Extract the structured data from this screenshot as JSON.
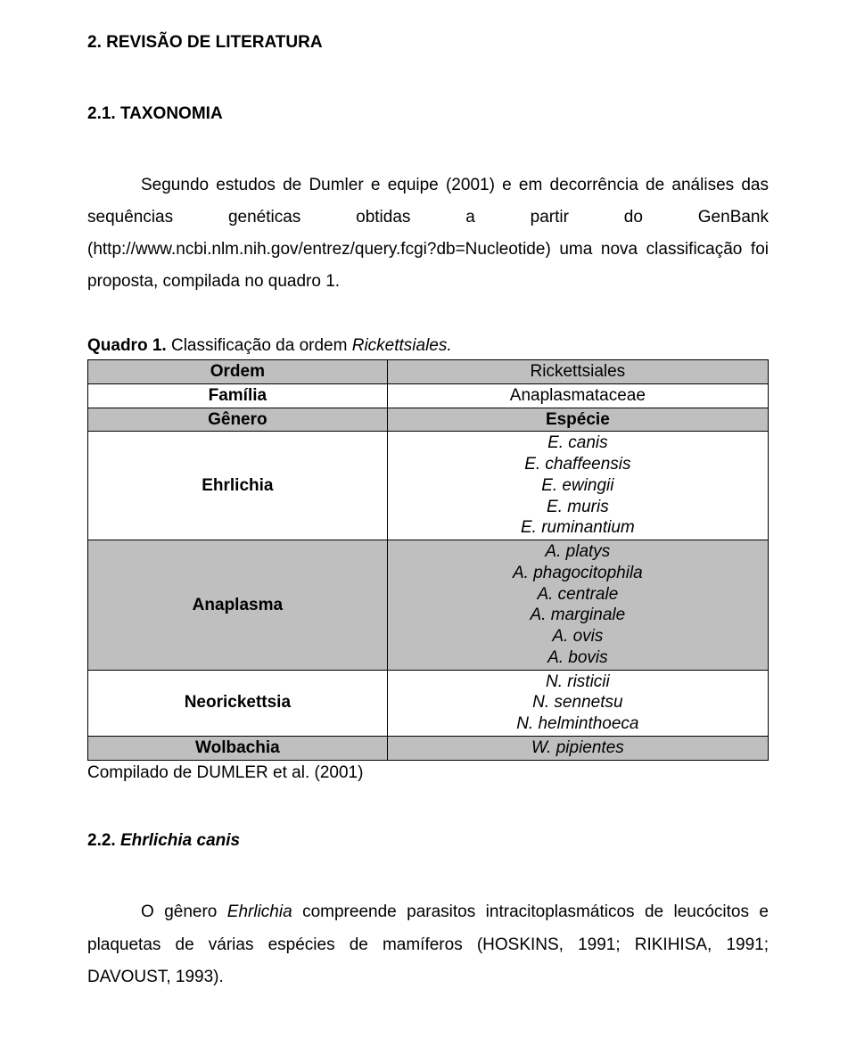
{
  "colors": {
    "background": "#ffffff",
    "text": "#000000",
    "table_border": "#000000",
    "shaded_row": "#bfbfbf"
  },
  "typography": {
    "body_fontsize_pt": 14,
    "heading_weight": "bold",
    "line_height": 1.9,
    "font_family": "Arial"
  },
  "section": {
    "heading": "2. REVISÃO DE LITERATURA",
    "sub1_heading": "2.1. TAXONOMIA",
    "sub1_paragraph": "Segundo estudos de Dumler e equipe (2001) e em decorrência de análises das sequências genéticas obtidas a partir do GenBank (http://www.ncbi.nlm.nih.gov/entrez/query.fcgi?db=Nucleotide) uma nova classificação foi proposta, compilada no quadro 1.",
    "table_caption_prefix": "Quadro 1.",
    "table_caption_rest": " Classificação da ordem ",
    "table_caption_italic": "Rickettsiales.",
    "table": {
      "columns": [
        "left",
        "right"
      ],
      "rows": [
        {
          "shaded": true,
          "left_bold": true,
          "left": "Ordem",
          "right": "Rickettsiales",
          "right_italic": false
        },
        {
          "shaded": false,
          "left_bold": true,
          "left": "Família",
          "right": "Anaplasmataceae",
          "right_italic": false
        },
        {
          "shaded": true,
          "left_bold": true,
          "left": "Gênero",
          "right": "Espécie",
          "right_bold": true
        },
        {
          "shaded": false,
          "left_bold": true,
          "left": "Ehrlichia",
          "right_lines": [
            "E. canis",
            "E. chaffeensis",
            "E. ewingii",
            "E. muris",
            "E. ruminantium"
          ],
          "right_italic": true
        },
        {
          "shaded": true,
          "left_bold": true,
          "left": "Anaplasma",
          "right_lines": [
            "A. platys",
            "A. phagocitophila",
            "A. centrale",
            "A. marginale",
            "A. ovis",
            "A. bovis"
          ],
          "right_italic": true
        },
        {
          "shaded": false,
          "left_bold": true,
          "left": "Neorickettsia",
          "right_lines": [
            "N. risticii",
            "N. sennetsu",
            "N. helminthoeca"
          ],
          "right_italic": true
        },
        {
          "shaded": true,
          "left_bold": true,
          "left": "Wolbachia",
          "right": "W. pipientes",
          "right_italic": true
        }
      ]
    },
    "table_source": "Compilado de DUMLER et al. (2001)",
    "sub2_heading_prefix": "2.2. ",
    "sub2_heading_italic": "Ehrlichia canis",
    "sub2_para_part1": "O gênero ",
    "sub2_para_italic": "Ehrlichia",
    "sub2_para_part2": " compreende parasitos intracitoplasmáticos de leucócitos e plaquetas de várias espécies de mamíferos (HOSKINS, 1991; RIKIHISA, 1991; DAVOUST, 1993)."
  }
}
